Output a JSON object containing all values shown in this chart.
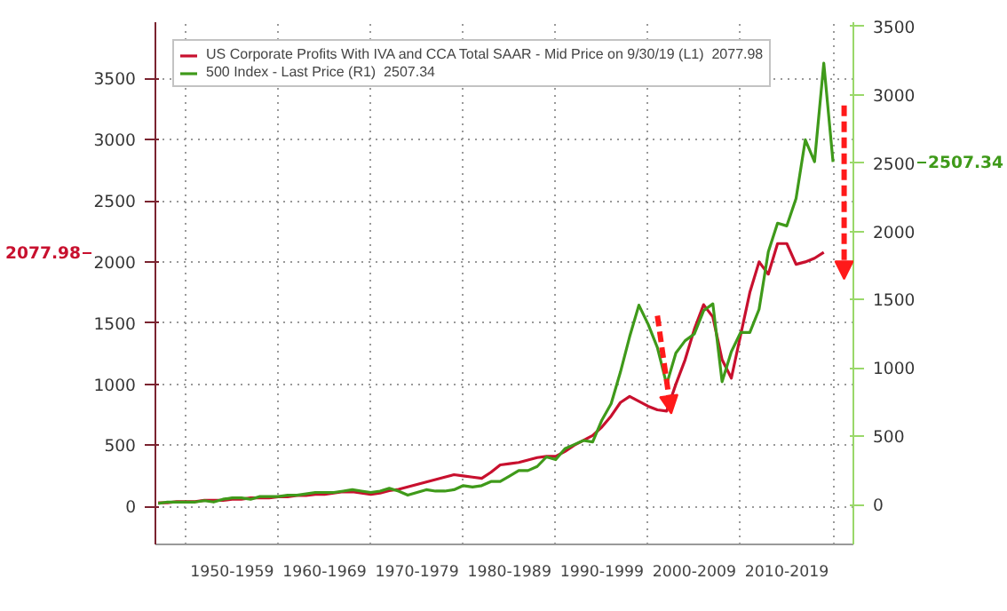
{
  "chart_data": {
    "type": "line",
    "categories": [
      null,
      null,
      null,
      null,
      null,
      null,
      null,
      null,
      "1950-1959",
      null,
      null,
      null,
      null,
      null,
      null,
      null,
      null,
      null,
      "1960-1969",
      null,
      null,
      null,
      null,
      null,
      null,
      null,
      null,
      null,
      "1970-1979",
      null,
      null,
      null,
      null,
      null,
      null,
      null,
      null,
      null,
      "1980-1989",
      null,
      null,
      null,
      null,
      null,
      null,
      null,
      null,
      null,
      "1990-1999",
      null,
      null,
      null,
      null,
      null,
      null,
      null,
      null,
      null,
      "2000-2009",
      null,
      null,
      null,
      null,
      null,
      null,
      null,
      null,
      null,
      "2010-2019",
      null,
      null,
      null,
      null,
      null
    ],
    "series": [
      {
        "name": "US Corporate Profits With IVA and CCA Total SAAR - Mid Price on 9/30/19 (L1)  2077.98",
        "color": "#c8102e",
        "values": [
          30,
          30,
          40,
          40,
          40,
          50,
          50,
          50,
          60,
          60,
          70,
          70,
          70,
          80,
          80,
          90,
          90,
          100,
          100,
          110,
          120,
          120,
          110,
          100,
          110,
          130,
          140,
          160,
          180,
          200,
          220,
          240,
          260,
          250,
          240,
          230,
          280,
          340,
          350,
          360,
          380,
          400,
          410,
          410,
          450,
          500,
          540,
          580,
          650,
          740,
          850,
          900,
          860,
          820,
          790,
          780,
          1000,
          1200,
          1450,
          1650,
          1550,
          1200,
          1050,
          1400,
          1750,
          2000,
          1900,
          2150,
          2150,
          1980,
          2000,
          2030,
          2077.98,
          null
        ]
      },
      {
        "name": "500 Index - Last Price (R1)  2507.34",
        "color": "#3f9a1a",
        "axis": "y2",
        "values": [
          10,
          20,
          20,
          20,
          20,
          30,
          20,
          40,
          50,
          50,
          40,
          60,
          60,
          60,
          70,
          70,
          80,
          90,
          90,
          90,
          100,
          110,
          100,
          90,
          100,
          120,
          100,
          70,
          90,
          110,
          100,
          100,
          110,
          140,
          130,
          140,
          170,
          170,
          210,
          250,
          250,
          280,
          350,
          330,
          410,
          440,
          470,
          460,
          620,
          740,
          970,
          1230,
          1460,
          1320,
          1150,
          880,
          1110,
          1200,
          1250,
          1420,
          1470,
          900,
          1120,
          1260,
          1260,
          1430,
          1850,
          2060,
          2040,
          2240,
          2670,
          2510,
          3230,
          2507.34
        ]
      }
    ],
    "annotations": [
      "2077.98",
      "2507.34"
    ],
    "ylim": [
      -310,
      3960
    ],
    "yticks": [
      0,
      500,
      1000,
      1500,
      2000,
      2500,
      3000,
      3500
    ],
    "y2lim": [
      -290,
      3530
    ],
    "y2ticks": [
      0,
      500,
      1000,
      1500,
      2000,
      2500,
      3000,
      3500
    ],
    "grid": true,
    "legend": "top left",
    "line_style": "solid",
    "marker": "none"
  }
}
